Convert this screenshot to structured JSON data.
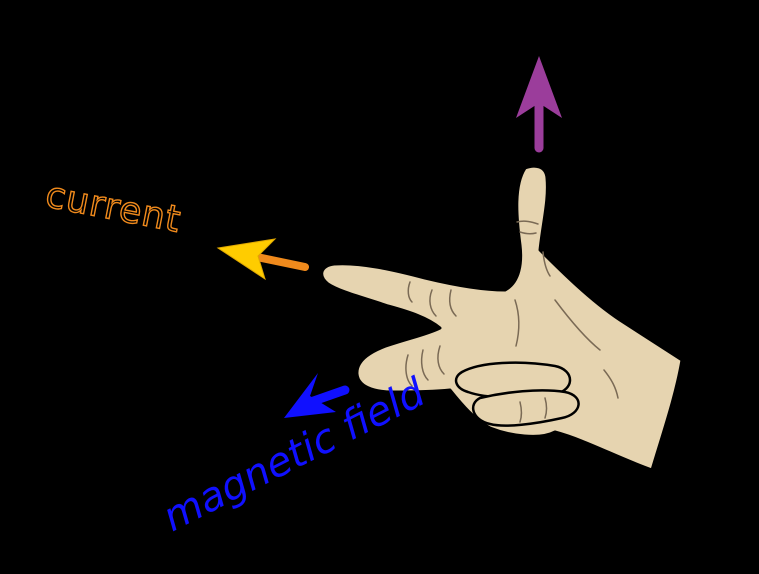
{
  "labels": {
    "current": "current",
    "magnetic_field": "magnetic field"
  },
  "colors": {
    "background": "#000000",
    "skin": "#e6d4b0",
    "skin_line": "#7a6a55",
    "current_arrow": "#f08a1c",
    "current_arrowhead": "#ffcc00",
    "field": "#1010ff",
    "force": "#9b3d9b"
  }
}
